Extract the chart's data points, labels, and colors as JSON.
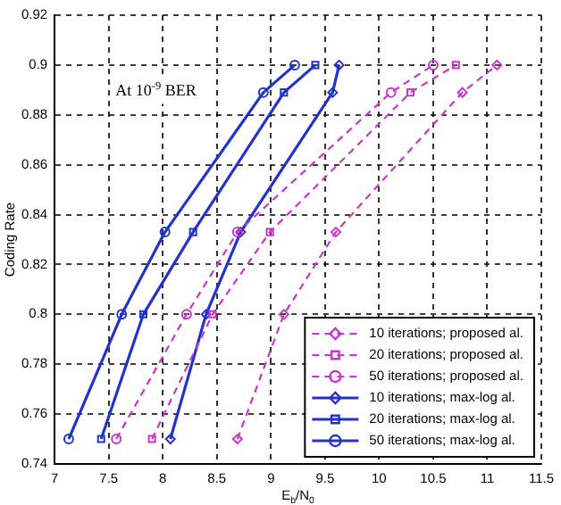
{
  "chart_data": {
    "type": "line",
    "xlabel": "E$_{b}$/N$_{0}$",
    "ylabel": "Coding Rate",
    "annotations": [
      "At 10$^{-9}$ BER"
    ],
    "xlim": [
      7,
      11.5
    ],
    "xticks": [
      7,
      7.5,
      8,
      8.5,
      9,
      9.5,
      10,
      10.5,
      11,
      11.5
    ],
    "ylim": [
      0.74,
      0.92
    ],
    "yticks": [
      0.74,
      0.76,
      0.78,
      0.8,
      0.82,
      0.84,
      0.86,
      0.88,
      0.9,
      0.92
    ],
    "grid": true,
    "legend": "bottom right",
    "series": [
      {
        "name": "10 iterations; proposed al.",
        "color": "#cc33cc",
        "marker": "diamond",
        "line_style": "dashed",
        "x": [
          8.69,
          9.12,
          9.6,
          10.77,
          11.09
        ],
        "values": [
          0.75,
          0.8,
          0.833,
          0.889,
          0.9
        ]
      },
      {
        "name": "20 iterations; proposed al.",
        "color": "#cc33cc",
        "marker": "square",
        "line_style": "dashed",
        "x": [
          7.9,
          8.46,
          8.99,
          10.29,
          10.71
        ],
        "values": [
          0.75,
          0.8,
          0.833,
          0.889,
          0.9
        ]
      },
      {
        "name": "50 iterations; proposed al.",
        "color": "#cc33cc",
        "marker": "circle",
        "line_style": "dashed",
        "x": [
          7.57,
          8.22,
          8.69,
          10.11,
          10.5
        ],
        "values": [
          0.75,
          0.8,
          0.833,
          0.889,
          0.9
        ]
      },
      {
        "name": "10 iterations; max-log al.",
        "color": "#2233cc",
        "marker": "diamond",
        "line_style": "solid",
        "x": [
          8.07,
          8.4,
          8.72,
          9.57,
          9.63
        ],
        "values": [
          0.75,
          0.8,
          0.833,
          0.889,
          0.9
        ]
      },
      {
        "name": "20 iterations; max-log al.",
        "color": "#2233cc",
        "marker": "square",
        "line_style": "solid",
        "x": [
          7.43,
          7.82,
          8.28,
          9.12,
          9.41
        ],
        "values": [
          0.75,
          0.8,
          0.833,
          0.889,
          0.9
        ]
      },
      {
        "name": "50 iterations; max-log al.",
        "color": "#2233cc",
        "marker": "circle",
        "line_style": "solid",
        "x": [
          7.13,
          7.62,
          8.02,
          8.93,
          9.22
        ],
        "values": [
          0.75,
          0.8,
          0.833,
          0.889,
          0.9
        ]
      }
    ]
  }
}
